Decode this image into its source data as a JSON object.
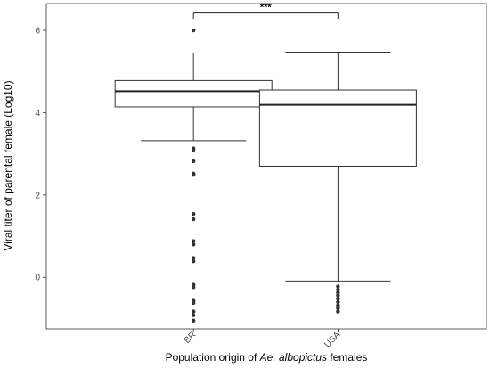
{
  "chart_data": {
    "type": "box",
    "xlabel_parts": [
      "Population origin of ",
      "Ae. albopictus",
      " females"
    ],
    "ylabel": "Viral titer of parental female (Log10)",
    "categories": [
      "BR",
      "USA"
    ],
    "ylim": [
      -1.25,
      6.65
    ],
    "yticks": [
      0,
      2,
      4,
      6
    ],
    "ytick_labels": [
      "0",
      "2",
      "4",
      "6"
    ],
    "grid": false,
    "boxes": [
      {
        "category": "BR",
        "whisker_low": 3.32,
        "q1": 4.14,
        "median": 4.52,
        "q3": 4.78,
        "whisker_high": 5.45,
        "outliers": [
          6.0,
          3.13,
          3.08,
          2.82,
          2.52,
          2.49,
          1.54,
          1.41,
          0.88,
          0.8,
          0.47,
          0.39,
          -0.18,
          -0.24,
          -0.57,
          -0.62,
          -0.83,
          -0.92,
          -1.05
        ]
      },
      {
        "category": "USA",
        "whisker_low": -0.09,
        "q1": 2.7,
        "median": 4.19,
        "q3": 4.55,
        "whisker_high": 5.47,
        "outliers": [
          -0.22,
          -0.3,
          -0.37,
          -0.44,
          -0.52,
          -0.6,
          -0.68,
          -0.75,
          -0.83
        ]
      }
    ],
    "significance": {
      "label": "***",
      "y": 6.42,
      "drop_to": 6.28
    }
  }
}
